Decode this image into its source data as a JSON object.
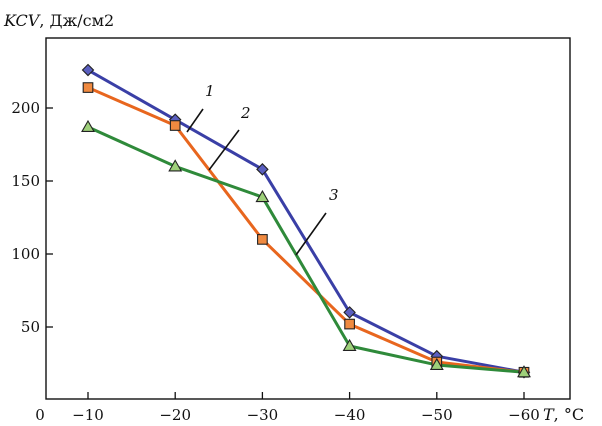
{
  "chart_data": {
    "type": "line",
    "title": "",
    "ylabel": "KCV, Дж/см2",
    "ylabel_var": "KCV",
    "ylabel_unit": ", Дж/см2",
    "xlabel": "T, °C",
    "xlabel_var": "T",
    "xlabel_unit": ", °C",
    "origin_label": "0",
    "categories": [
      "−10",
      "−20",
      "−30",
      "−40",
      "−50",
      "−60"
    ],
    "x": [
      -10,
      -20,
      -30,
      -40,
      -50,
      -60
    ],
    "xlim": [
      0,
      -65
    ],
    "ylim": [
      0,
      240
    ],
    "yticks": [
      50,
      100,
      150,
      200
    ],
    "grid": false,
    "legend": "none",
    "series": [
      {
        "name": "1",
        "marker": "diamond",
        "color": "#3a3fa6",
        "values": [
          226,
          192,
          158,
          60,
          30,
          19
        ]
      },
      {
        "name": "2",
        "marker": "square",
        "color": "#e8661e",
        "values": [
          214,
          188,
          110,
          52,
          26,
          19
        ]
      },
      {
        "name": "3",
        "marker": "triangle",
        "color": "#2f8a3a",
        "values": [
          187,
          160,
          139,
          37,
          24,
          19
        ]
      }
    ]
  }
}
